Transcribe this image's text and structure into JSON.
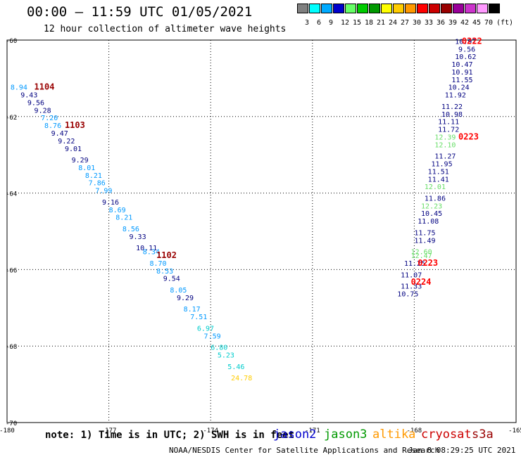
{
  "header": {
    "title": "00:00 – 11:59 UTC 01/05/2021",
    "subtitle": "12 hour collection of altimeter wave heights"
  },
  "color_scale": {
    "labels": [
      "3",
      "6",
      "9",
      "12",
      "15",
      "18",
      "21",
      "24",
      "27",
      "30",
      "33",
      "36",
      "39",
      "42",
      "45",
      "70",
      "(ft)"
    ],
    "colors": [
      "#808080",
      "#00ffff",
      "#00aaff",
      "#0000cc",
      "#66ff66",
      "#00cc00",
      "#009900",
      "#ffff00",
      "#ffcc00",
      "#ff9900",
      "#ff0000",
      "#cc0000",
      "#990000",
      "#990099",
      "#cc33cc",
      "#ff99ff",
      "#000000"
    ]
  },
  "axes": {
    "x_min": -180,
    "x_max": -165,
    "y_min": -70,
    "y_max": -60,
    "x_ticks": [
      "-180",
      "-177",
      "-174",
      "-171",
      "-168",
      "-165"
    ],
    "y_ticks": [
      "-60",
      "-62",
      "-64",
      "-66",
      "-68",
      "-70"
    ]
  },
  "chart_data": {
    "type": "scatter",
    "x_ticks": [
      "-180",
      "-177",
      "-174",
      "-171",
      "-168",
      "-165"
    ],
    "y_ticks": [
      "-60",
      "-62",
      "-64",
      "-66",
      "-68",
      "-70"
    ],
    "labels": [
      {
        "text": "8.94",
        "lon": -179.9,
        "lat": -61.3,
        "color": "#0099ff"
      },
      {
        "text": "9.43",
        "lon": -179.6,
        "lat": -61.5,
        "color": "#000080"
      },
      {
        "text": "9.56",
        "lon": -179.4,
        "lat": -61.7,
        "color": "#000080"
      },
      {
        "text": "9.28",
        "lon": -179.2,
        "lat": -61.9,
        "color": "#000080"
      },
      {
        "text": "7.20",
        "lon": -179.0,
        "lat": -62.1,
        "color": "#0099ff"
      },
      {
        "text": "8.76",
        "lon": -178.9,
        "lat": -62.3,
        "color": "#0099ff"
      },
      {
        "text": "9.47",
        "lon": -178.7,
        "lat": -62.5,
        "color": "#000080"
      },
      {
        "text": "9.22",
        "lon": -178.5,
        "lat": -62.7,
        "color": "#000080"
      },
      {
        "text": "9.01",
        "lon": -178.3,
        "lat": -62.9,
        "color": "#000080"
      },
      {
        "text": "9.29",
        "lon": -178.1,
        "lat": -63.2,
        "color": "#000080"
      },
      {
        "text": "8.01",
        "lon": -177.9,
        "lat": -63.4,
        "color": "#0099ff"
      },
      {
        "text": "8.21",
        "lon": -177.7,
        "lat": -63.6,
        "color": "#0099ff"
      },
      {
        "text": "7.86",
        "lon": -177.6,
        "lat": -63.8,
        "color": "#0099ff"
      },
      {
        "text": "7.99",
        "lon": -177.4,
        "lat": -64.0,
        "color": "#0099ff"
      },
      {
        "text": "9.16",
        "lon": -177.2,
        "lat": -64.3,
        "color": "#000080"
      },
      {
        "text": "8.69",
        "lon": -177.0,
        "lat": -64.5,
        "color": "#0099ff"
      },
      {
        "text": "8.21",
        "lon": -176.8,
        "lat": -64.7,
        "color": "#0099ff"
      },
      {
        "text": "8.56",
        "lon": -176.6,
        "lat": -65.0,
        "color": "#0099ff"
      },
      {
        "text": "9.33",
        "lon": -176.4,
        "lat": -65.2,
        "color": "#000080"
      },
      {
        "text": "10.11",
        "lon": -176.2,
        "lat": -65.5,
        "color": "#000080"
      },
      {
        "text": "8.34",
        "lon": -176.0,
        "lat": -65.6,
        "color": "#0099ff"
      },
      {
        "text": "8.70",
        "lon": -175.8,
        "lat": -65.9,
        "color": "#0099ff"
      },
      {
        "text": "8.53",
        "lon": -175.6,
        "lat": -66.1,
        "color": "#0099ff"
      },
      {
        "text": "9.54",
        "lon": -175.4,
        "lat": -66.3,
        "color": "#000080"
      },
      {
        "text": "8.05",
        "lon": -175.2,
        "lat": -66.6,
        "color": "#0099ff"
      },
      {
        "text": "9.29",
        "lon": -175.0,
        "lat": -66.8,
        "color": "#000080"
      },
      {
        "text": "8.17",
        "lon": -174.8,
        "lat": -67.1,
        "color": "#0099ff"
      },
      {
        "text": "7.51",
        "lon": -174.6,
        "lat": -67.3,
        "color": "#0099ff"
      },
      {
        "text": "6.97",
        "lon": -174.4,
        "lat": -67.6,
        "color": "#00cccc"
      },
      {
        "text": "7.59",
        "lon": -174.2,
        "lat": -67.8,
        "color": "#0099ff"
      },
      {
        "text": "6.80",
        "lon": -174.0,
        "lat": -68.1,
        "color": "#00cccc"
      },
      {
        "text": "5.23",
        "lon": -173.8,
        "lat": -68.3,
        "color": "#00cccc"
      },
      {
        "text": "5.46",
        "lon": -173.5,
        "lat": -68.6,
        "color": "#00cccc"
      },
      {
        "text": "24.78",
        "lon": -173.4,
        "lat": -68.9,
        "color": "#ffcc00"
      },
      {
        "text": "10.97",
        "lon": -166.8,
        "lat": -60.1,
        "color": "#000080"
      },
      {
        "text": "9.56",
        "lon": -166.7,
        "lat": -60.3,
        "color": "#000080"
      },
      {
        "text": "10.62",
        "lon": -166.8,
        "lat": -60.5,
        "color": "#000080"
      },
      {
        "text": "10.47",
        "lon": -166.9,
        "lat": -60.7,
        "color": "#000080"
      },
      {
        "text": "10.91",
        "lon": -166.9,
        "lat": -60.9,
        "color": "#000080"
      },
      {
        "text": "11.55",
        "lon": -166.9,
        "lat": -61.1,
        "color": "#000080"
      },
      {
        "text": "10.24",
        "lon": -167.0,
        "lat": -61.3,
        "color": "#000080"
      },
      {
        "text": "11.92",
        "lon": -167.1,
        "lat": -61.5,
        "color": "#000080"
      },
      {
        "text": "11.22",
        "lon": -167.2,
        "lat": -61.8,
        "color": "#000080"
      },
      {
        "text": "10.98",
        "lon": -167.2,
        "lat": -62.0,
        "color": "#000080"
      },
      {
        "text": "11.11",
        "lon": -167.3,
        "lat": -62.2,
        "color": "#000080"
      },
      {
        "text": "11.72",
        "lon": -167.3,
        "lat": -62.4,
        "color": "#000080"
      },
      {
        "text": "12.39",
        "lon": -167.4,
        "lat": -62.6,
        "color": "#66dd66"
      },
      {
        "text": "12.10",
        "lon": -167.4,
        "lat": -62.8,
        "color": "#66dd66"
      },
      {
        "text": "11.27",
        "lon": -167.4,
        "lat": -63.1,
        "color": "#000080"
      },
      {
        "text": "11.95",
        "lon": -167.5,
        "lat": -63.3,
        "color": "#000080"
      },
      {
        "text": "11.51",
        "lon": -167.6,
        "lat": -63.5,
        "color": "#000080"
      },
      {
        "text": "11.41",
        "lon": -167.6,
        "lat": -63.7,
        "color": "#000080"
      },
      {
        "text": "12.01",
        "lon": -167.7,
        "lat": -63.9,
        "color": "#66dd66"
      },
      {
        "text": "11.86",
        "lon": -167.7,
        "lat": -64.2,
        "color": "#000080"
      },
      {
        "text": "12.23",
        "lon": -167.8,
        "lat": -64.4,
        "color": "#66dd66"
      },
      {
        "text": "10.45",
        "lon": -167.8,
        "lat": -64.6,
        "color": "#000080"
      },
      {
        "text": "11.08",
        "lon": -167.9,
        "lat": -64.8,
        "color": "#000080"
      },
      {
        "text": "11.75",
        "lon": -168.0,
        "lat": -65.1,
        "color": "#000080"
      },
      {
        "text": "11.49",
        "lon": -168.0,
        "lat": -65.3,
        "color": "#000080"
      },
      {
        "text": "12.60",
        "lon": -168.1,
        "lat": -65.6,
        "color": "#66dd66"
      },
      {
        "text": "12.47",
        "lon": -168.1,
        "lat": -65.7,
        "color": "#66dd66"
      },
      {
        "text": "11.25",
        "lon": -168.3,
        "lat": -65.9,
        "color": "#000080"
      },
      {
        "text": "11.07",
        "lon": -168.4,
        "lat": -66.2,
        "color": "#000080"
      },
      {
        "text": "11.33",
        "lon": -168.4,
        "lat": -66.5,
        "color": "#000080"
      },
      {
        "text": "10.75",
        "lon": -168.5,
        "lat": -66.7,
        "color": "#000080"
      }
    ],
    "times": [
      {
        "text": "1104",
        "lon": -179.2,
        "lat": -61.3,
        "color": "#990000"
      },
      {
        "text": "1103",
        "lon": -178.3,
        "lat": -62.3,
        "color": "#990000"
      },
      {
        "text": "1102",
        "lon": -175.6,
        "lat": -65.7,
        "color": "#990000"
      },
      {
        "text": "0222",
        "lon": -166.6,
        "lat": -60.1,
        "color": "#ff0000"
      },
      {
        "text": "0223",
        "lon": -166.7,
        "lat": -62.6,
        "color": "#ff0000"
      },
      {
        "text": "0223",
        "lon": -167.9,
        "lat": -65.9,
        "color": "#ff0000"
      },
      {
        "text": "0224",
        "lon": -168.1,
        "lat": -66.4,
        "color": "#ff0000"
      }
    ]
  },
  "footer": {
    "note": "note: 1) Time is in UTC; 2) SWH is in feet",
    "satellites": [
      {
        "name": "jason2",
        "color": "#0000cc"
      },
      {
        "name": "jason3",
        "color": "#009900"
      },
      {
        "name": "altika",
        "color": "#ff9900"
      },
      {
        "name": "cryosat",
        "color": "#cc0000"
      },
      {
        "name": "s3a",
        "color": "#990000"
      }
    ],
    "credit": "NOAA/NESDIS Center for Satellite Applications and Research",
    "timestamp": "Jan  8 08:29:25 UTC 2021"
  }
}
